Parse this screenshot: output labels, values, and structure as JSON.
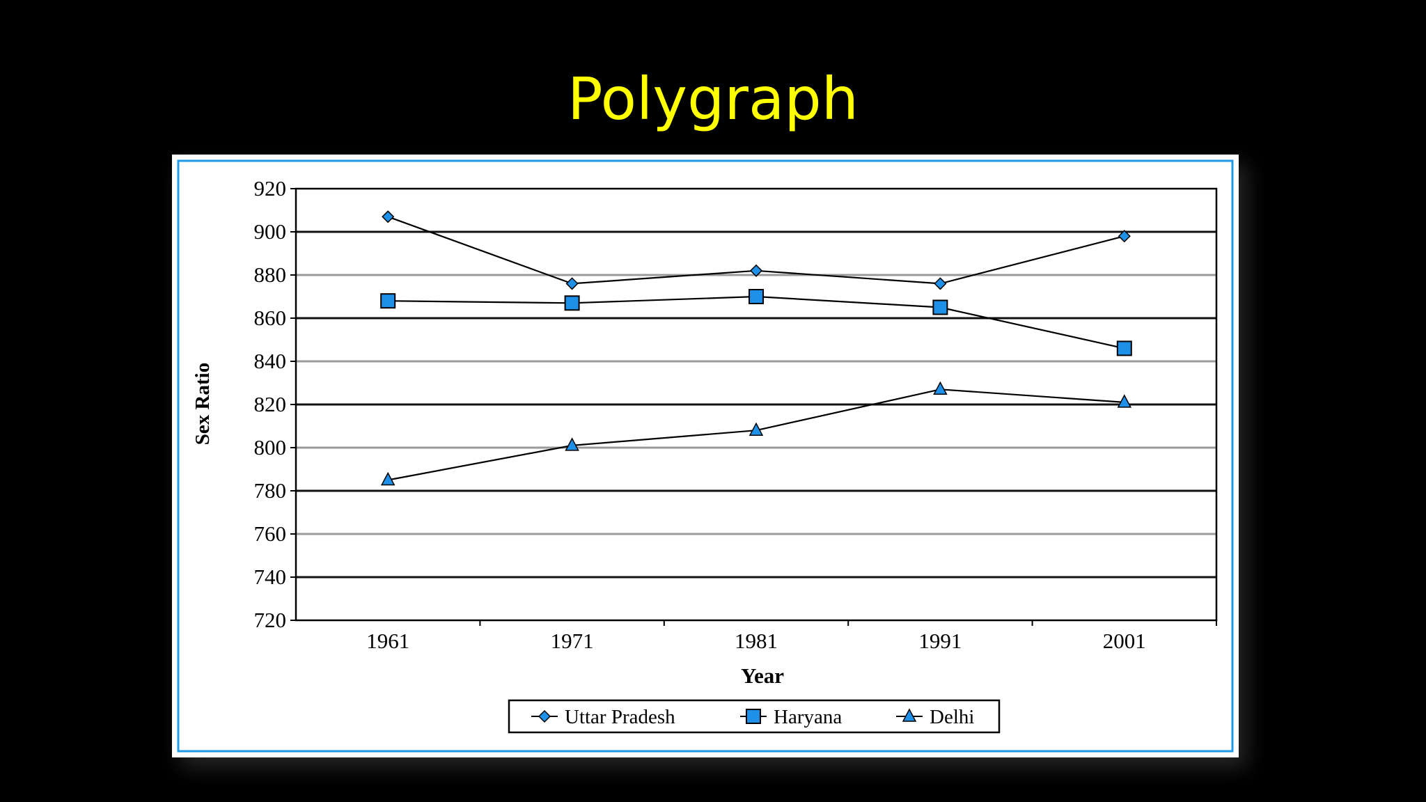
{
  "slide": {
    "title": "Polygraph"
  },
  "chart_data": {
    "type": "line",
    "title": "",
    "xlabel": "Year",
    "ylabel": "Sex Ratio",
    "categories": [
      "1961",
      "1971",
      "1981",
      "1991",
      "2001"
    ],
    "yticks": [
      "920",
      "900",
      "880",
      "860",
      "840",
      "820",
      "800",
      "780",
      "760",
      "740",
      "720"
    ],
    "ylim": [
      720,
      920
    ],
    "grid": true,
    "legend": "bottom",
    "series": [
      {
        "name": "Uttar Pradesh",
        "marker": "diamond",
        "values": [
          907,
          876,
          882,
          876,
          898
        ]
      },
      {
        "name": "Haryana",
        "marker": "square",
        "values": [
          868,
          867,
          870,
          865,
          846
        ]
      },
      {
        "name": "Delhi",
        "marker": "triangle",
        "values": [
          785,
          801,
          808,
          827,
          821
        ]
      }
    ],
    "colors": {
      "marker_fill": "#1E90E8",
      "line": "#000000",
      "frame_border": "#1E9BE8"
    }
  }
}
